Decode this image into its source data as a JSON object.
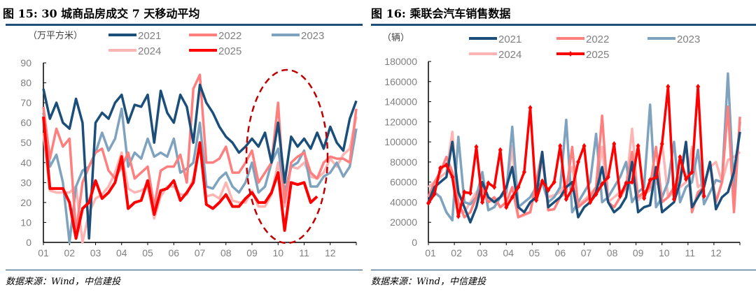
{
  "left": {
    "title": "图 15: 30 城商品房成交 7 天移动平均",
    "source": "数据来源：Wind，中信建投"
  },
  "right": {
    "title": "图 16: 乘联会汽车销售数据",
    "source": "数据来源：Wind，中信建投"
  },
  "chart_data": [
    {
      "type": "line",
      "title": "30 城商品房成交 7 天移动平均",
      "ylabel": "（万平方米）",
      "xlabel": "",
      "ylim": [
        0,
        90
      ],
      "yticks": [
        "0",
        "10",
        "20",
        "30",
        "40",
        "50",
        "60",
        "70",
        "80",
        "90"
      ],
      "ytick_values": [
        0,
        10,
        20,
        30,
        40,
        50,
        60,
        70,
        80,
        90
      ],
      "xticks": [
        "01",
        "02",
        "03",
        "04",
        "05",
        "06",
        "07",
        "08",
        "09",
        "10",
        "11",
        "12"
      ],
      "xlim": [
        1,
        13
      ],
      "x_start": 1,
      "x_step": 0.25,
      "legend": "top",
      "annotation": "dashed ellipse highlighting Sep-Nov",
      "series": [
        {
          "name": "2021",
          "color": "#1B4F7A",
          "values": [
            77,
            62,
            70,
            60,
            57,
            72,
            60,
            2,
            60,
            65,
            62,
            70,
            74,
            60,
            69,
            68,
            74,
            50,
            76,
            65,
            60,
            74,
            68,
            50,
            79,
            70,
            65,
            58,
            53,
            50,
            45,
            48,
            52,
            48,
            55,
            40,
            60,
            30,
            53,
            48,
            52,
            47,
            55,
            47,
            58,
            50,
            46,
            62,
            71
          ]
        },
        {
          "name": "2022",
          "color": "#FF7F7F",
          "values": [
            68,
            42,
            57,
            48,
            52,
            5,
            30,
            38,
            45,
            47,
            36,
            32,
            38,
            45,
            32,
            35,
            38,
            18,
            36,
            38,
            38,
            44,
            30,
            77,
            84,
            40,
            40,
            42,
            48,
            35,
            35,
            40,
            46,
            30,
            35,
            40,
            70,
            20,
            40,
            43,
            45,
            35,
            32,
            40,
            43,
            42,
            42,
            40,
            67
          ]
        },
        {
          "name": "2023",
          "color": "#7FA3BF",
          "values": [
            65,
            38,
            44,
            30,
            0,
            28,
            36,
            38,
            45,
            55,
            46,
            52,
            67,
            38,
            45,
            42,
            52,
            43,
            45,
            43,
            52,
            35,
            37,
            40,
            60,
            28,
            27,
            32,
            35,
            28,
            25,
            30,
            40,
            25,
            28,
            40,
            47,
            25,
            38,
            40,
            46,
            28,
            28,
            33,
            35,
            40,
            33,
            38,
            57
          ]
        },
        {
          "name": "2024",
          "color": "#FFB4B4",
          "values": [
            55,
            26,
            25,
            25,
            25,
            28,
            0,
            15,
            22,
            24,
            28,
            35,
            45,
            27,
            25,
            26,
            28,
            12,
            23,
            28,
            28,
            24,
            24,
            32,
            49,
            23,
            24,
            22,
            30,
            21,
            20,
            20,
            26,
            18,
            18,
            24,
            40,
            18,
            38,
            37,
            40,
            33,
            32,
            35,
            42,
            38,
            44,
            47,
            63
          ]
        },
        {
          "name": "2025",
          "color": "#FF0000",
          "values": [
            63,
            27,
            27,
            27,
            20,
            2,
            17,
            20,
            31,
            22,
            25,
            30,
            43,
            17,
            20,
            21,
            31,
            14,
            26,
            27,
            31,
            21,
            25,
            30,
            50,
            19,
            17,
            20,
            24,
            18,
            18,
            22,
            25,
            20,
            20,
            25,
            35,
            6,
            30,
            29,
            30,
            20,
            23
          ]
        }
      ]
    },
    {
      "type": "line",
      "title": "乘联会汽车销售数据",
      "ylabel": "（辆）",
      "xlabel": "",
      "ylim": [
        0,
        180000
      ],
      "yticks": [
        "0",
        "20000",
        "40000",
        "60000",
        "80000",
        "100000",
        "120000",
        "140000",
        "160000",
        "180000"
      ],
      "ytick_values": [
        0,
        20000,
        40000,
        60000,
        80000,
        100000,
        120000,
        140000,
        160000,
        180000
      ],
      "xticks": [
        "01",
        "02",
        "03",
        "04",
        "05",
        "06",
        "07",
        "08",
        "09",
        "10",
        "11",
        "12"
      ],
      "xlim": [
        1,
        13
      ],
      "x_start": 1,
      "x_step": 0.2308,
      "legend": "top",
      "series": [
        {
          "name": "2021",
          "color": "#1B4F7A",
          "values": [
            40000,
            55000,
            60000,
            65000,
            100000,
            50000,
            35000,
            20000,
            35000,
            60000,
            45000,
            40000,
            45000,
            55000,
            75000,
            35000,
            30000,
            40000,
            45000,
            90000,
            35000,
            40000,
            45000,
            55000,
            60000,
            25000,
            35000,
            40000,
            50000,
            75000,
            40000,
            30000,
            35000,
            45000,
            80000,
            30000,
            35000,
            37000,
            75000,
            30000,
            35000,
            40000,
            60000,
            100000,
            35000,
            45000,
            55000,
            80000,
            33000,
            45000,
            50000,
            70000,
            110000
          ]
        },
        {
          "name": "2022",
          "color": "#FF7F7F",
          "values": [
            45000,
            60000,
            70000,
            85000,
            70000,
            40000,
            25000,
            30000,
            45000,
            55000,
            40000,
            45000,
            35000,
            40000,
            55000,
            25000,
            28000,
            30000,
            60000,
            90000,
            32000,
            33000,
            45000,
            50000,
            95000,
            35000,
            40000,
            45000,
            55000,
            126000,
            40000,
            35000,
            45000,
            55000,
            90000,
            45000,
            50000,
            55000,
            95000,
            40000,
            45000,
            55000,
            65000,
            100000,
            30000,
            50000,
            55000,
            80000,
            40000,
            60000,
            135000,
            30000,
            125000
          ]
        },
        {
          "name": "2023",
          "color": "#7FA3BF",
          "values": [
            40000,
            50000,
            45000,
            30000,
            22000,
            105000,
            40000,
            38000,
            45000,
            70000,
            32000,
            35000,
            45000,
            50000,
            115000,
            35000,
            40000,
            45000,
            55000,
            60000,
            40000,
            45000,
            55000,
            122000,
            30000,
            40000,
            50000,
            60000,
            108000,
            40000,
            45000,
            55000,
            65000,
            80000,
            40000,
            50000,
            55000,
            137000,
            35000,
            45000,
            60000,
            100000,
            40000,
            55000,
            60000,
            92000,
            38000,
            50000,
            62000,
            60000,
            168000,
            50000,
            120000
          ]
        },
        {
          "name": "2024",
          "color": "#FFB4B4",
          "values": [
            55000,
            60000,
            65000,
            70000,
            110000,
            35000,
            30000,
            40000,
            50000,
            58000,
            40000,
            42000,
            45000,
            48000,
            96000,
            25000,
            27000,
            30000,
            60000,
            80000,
            45000,
            47000,
            50000,
            60000,
            75000,
            38000,
            42000,
            48000,
            55000,
            95000,
            40000,
            45000,
            50000,
            55000,
            113000,
            42000,
            48000,
            52000,
            58000,
            100000,
            45000,
            50000,
            55000,
            60000,
            95000,
            55000,
            60000,
            75000,
            80000,
            60000,
            82000,
            85000,
            90000
          ]
        },
        {
          "name": "2025",
          "color": "#FF0000",
          "marker": "diamond",
          "values": [
            39000,
            48000,
            74000,
            77000,
            65000,
            26000,
            50000,
            49000,
            95000,
            40000,
            59000,
            55000,
            92000,
            35000,
            45000,
            55000,
            70000,
            134000,
            42000,
            61000,
            52000,
            60000,
            96000,
            43000,
            53000,
            80000,
            96000,
            40000,
            48000,
            58000,
            65000,
            98000,
            46000,
            59000,
            60000,
            96000,
            44000,
            62000,
            65000,
            98000,
            155000,
            43000,
            85000,
            63000,
            70000,
            155000,
            46000
          ]
        }
      ]
    }
  ]
}
